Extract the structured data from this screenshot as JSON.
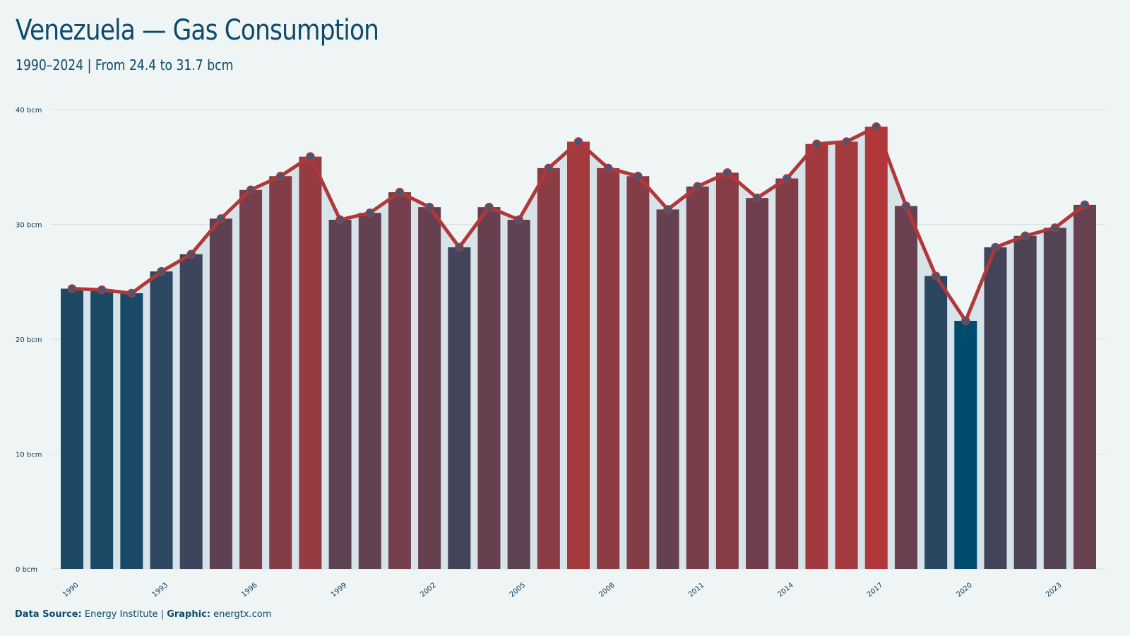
{
  "header": {
    "title": "Venezuela — Gas Consumption",
    "subtitle": "1990–2024 | From 24.4 to 31.7 bcm"
  },
  "footer": {
    "source_label": "Data Source:",
    "source_value": "Energy Institute |",
    "graphic_label": "Graphic:",
    "graphic_value": "energtx.com"
  },
  "chart_data": {
    "type": "bar",
    "overlay": "line",
    "categories": [
      "1990",
      "1991",
      "1992",
      "1993",
      "1994",
      "1995",
      "1996",
      "1997",
      "1998",
      "1999",
      "2000",
      "2001",
      "2002",
      "2003",
      "2004",
      "2005",
      "2006",
      "2007",
      "2008",
      "2009",
      "2010",
      "2011",
      "2012",
      "2013",
      "2014",
      "2015",
      "2016",
      "2017",
      "2018",
      "2019",
      "2020",
      "2021",
      "2022",
      "2023",
      "2024"
    ],
    "values": [
      24.4,
      24.3,
      24.0,
      25.9,
      27.4,
      30.5,
      33.0,
      34.2,
      35.9,
      30.4,
      31.0,
      32.8,
      31.5,
      28.0,
      31.5,
      30.4,
      34.9,
      37.2,
      34.9,
      34.2,
      31.3,
      33.3,
      34.5,
      32.3,
      34.0,
      37.0,
      37.2,
      38.5,
      31.6,
      25.5,
      21.6,
      28.0,
      29.0,
      29.7,
      31.7
    ],
    "x_tick_labels": [
      "1990",
      "1993",
      "1996",
      "1999",
      "2002",
      "2005",
      "2008",
      "2011",
      "2014",
      "2017",
      "2020",
      "2023"
    ],
    "y_tick_labels": [
      "0 bcm",
      "10 bcm",
      "20 bcm",
      "30 bcm",
      "40 bcm"
    ],
    "ylim": [
      0,
      40
    ],
    "y_ticks": [
      0,
      10,
      20,
      30,
      40
    ],
    "grid": true,
    "colors": {
      "low": "#004c6d",
      "high": "#b0383a",
      "line": "#b0383a",
      "area": "#d6e3e8",
      "grid": "#d9dfe2",
      "marker": "#4a5670"
    }
  }
}
